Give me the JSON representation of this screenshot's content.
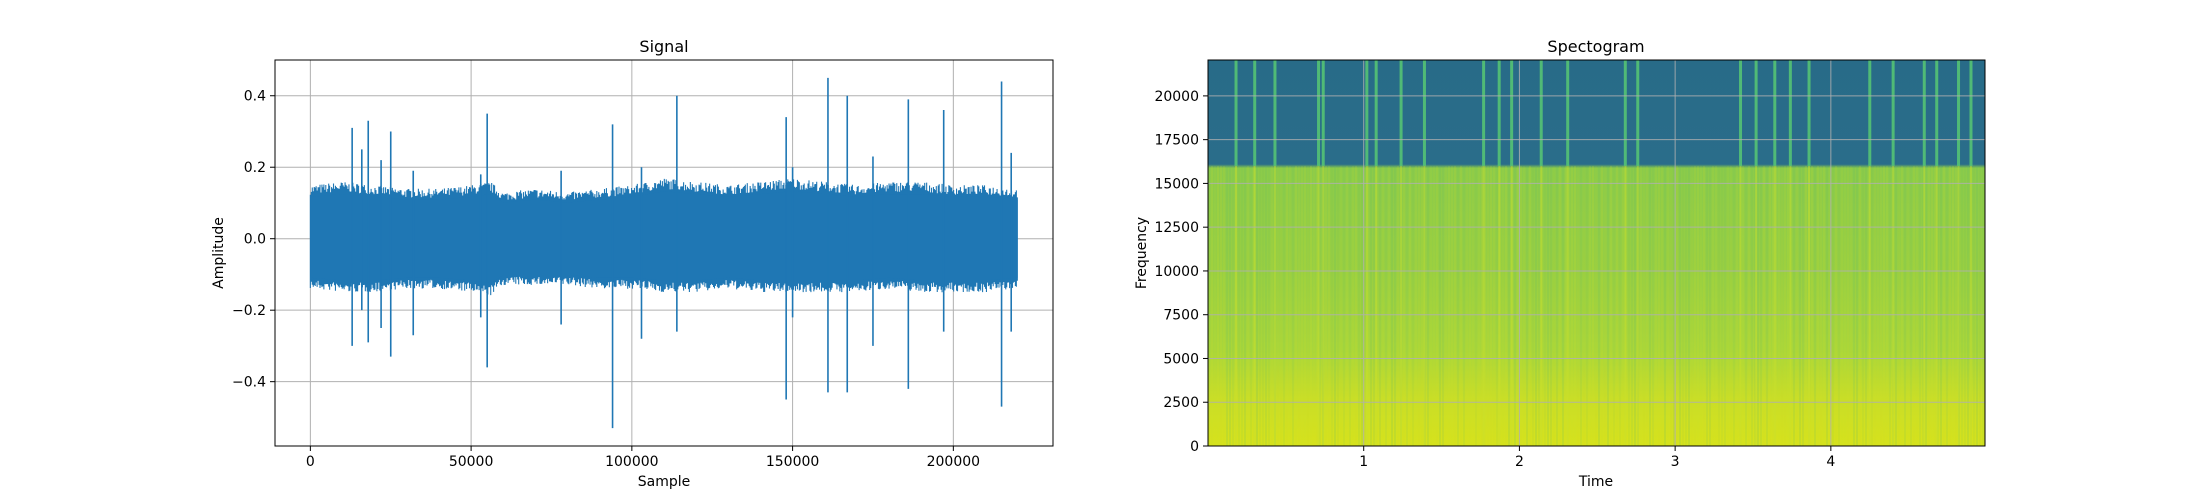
{
  "colors": {
    "line": "#1f77b4",
    "grid": "#b0b0b0",
    "axes": "#000000",
    "spec_bg_high": "#2a6d8a",
    "spec_body": "#9ccc3a",
    "spec_body_alt": "#7fc24a",
    "spec_low": "#d2e11f",
    "spec_strip": "#57c873"
  },
  "chart_data": [
    {
      "type": "line",
      "title": "Signal",
      "xlabel": "Sample",
      "ylabel": "Amplitude",
      "xlim": [
        -11000,
        231000
      ],
      "ylim": [
        -0.58,
        0.5
      ],
      "xticks": [
        0,
        50000,
        100000,
        150000,
        200000
      ],
      "xtick_labels": [
        "0",
        "50000",
        "100000",
        "150000",
        "200000"
      ],
      "yticks": [
        -0.4,
        -0.2,
        0.0,
        0.2,
        0.4
      ],
      "ytick_labels": [
        "−0.4",
        "−0.2",
        "0.0",
        "0.2",
        "0.4"
      ],
      "grid": true,
      "series": [
        {
          "envelope": {
            "x": [
              0,
              10000,
              20000,
              30000,
              40000,
              50000,
              56000,
              60000,
              70000,
              80000,
              90000,
              100000,
              110000,
              120000,
              130000,
              140000,
              150000,
              160000,
              170000,
              180000,
              190000,
              200000,
              210000,
              220000
            ],
            "upper": [
              0.15,
              0.16,
              0.15,
              0.14,
              0.14,
              0.15,
              0.16,
              0.13,
              0.14,
              0.13,
              0.14,
              0.15,
              0.17,
              0.16,
              0.15,
              0.16,
              0.17,
              0.16,
              0.15,
              0.16,
              0.16,
              0.15,
              0.15,
              0.14
            ],
            "lower": [
              -0.14,
              -0.15,
              -0.15,
              -0.14,
              -0.14,
              -0.15,
              -0.16,
              -0.13,
              -0.13,
              -0.13,
              -0.14,
              -0.14,
              -0.15,
              -0.15,
              -0.14,
              -0.15,
              -0.15,
              -0.15,
              -0.15,
              -0.14,
              -0.15,
              -0.15,
              -0.15,
              -0.14
            ]
          },
          "spikes": [
            {
              "x": 13000,
              "min": -0.3,
              "max": 0.31
            },
            {
              "x": 16000,
              "min": -0.2,
              "max": 0.25
            },
            {
              "x": 18000,
              "min": -0.29,
              "max": 0.33
            },
            {
              "x": 22000,
              "min": -0.25,
              "max": 0.22
            },
            {
              "x": 25000,
              "min": -0.33,
              "max": 0.3
            },
            {
              "x": 32000,
              "min": -0.27,
              "max": 0.19
            },
            {
              "x": 53000,
              "min": -0.22,
              "max": 0.18
            },
            {
              "x": 55000,
              "min": -0.36,
              "max": 0.35
            },
            {
              "x": 78000,
              "min": -0.24,
              "max": 0.19
            },
            {
              "x": 94000,
              "min": -0.53,
              "max": 0.32
            },
            {
              "x": 103000,
              "min": -0.28,
              "max": 0.2
            },
            {
              "x": 114000,
              "min": -0.26,
              "max": 0.4
            },
            {
              "x": 148000,
              "min": -0.45,
              "max": 0.34
            },
            {
              "x": 150000,
              "min": -0.22,
              "max": 0.2
            },
            {
              "x": 161000,
              "min": -0.43,
              "max": 0.45
            },
            {
              "x": 167000,
              "min": -0.43,
              "max": 0.4
            },
            {
              "x": 175000,
              "min": -0.3,
              "max": 0.23
            },
            {
              "x": 186000,
              "min": -0.42,
              "max": 0.39
            },
            {
              "x": 197000,
              "min": -0.26,
              "max": 0.36
            },
            {
              "x": 215000,
              "min": -0.47,
              "max": 0.44
            },
            {
              "x": 218000,
              "min": -0.26,
              "max": 0.24
            }
          ]
        }
      ]
    },
    {
      "type": "heatmap",
      "title": "Spectogram",
      "xlabel": "Time",
      "ylabel": "Frequency",
      "xlim": [
        0,
        4.99
      ],
      "ylim": [
        0,
        22050
      ],
      "xticks": [
        1,
        2,
        3,
        4
      ],
      "xtick_labels": [
        "1",
        "2",
        "3",
        "4"
      ],
      "yticks": [
        0,
        2500,
        5000,
        7500,
        10000,
        12500,
        15000,
        17500,
        20000
      ],
      "ytick_labels": [
        "0",
        "2500",
        "5000",
        "7500",
        "10000",
        "12500",
        "15000",
        "17500",
        "20000"
      ],
      "grid": true,
      "cutoff_frequency": 16000,
      "bands": [
        {
          "from": 0,
          "to": 3000,
          "level": "high"
        },
        {
          "from": 3000,
          "to": 9000,
          "level": "medium-high"
        },
        {
          "from": 9000,
          "to": 16000,
          "level": "medium"
        },
        {
          "from": 16000,
          "to": 22050,
          "level": "low"
        }
      ],
      "transients": [
        0.18,
        0.3,
        0.43,
        0.71,
        0.74,
        1.02,
        1.08,
        1.24,
        1.39,
        1.77,
        1.87,
        1.95,
        2.14,
        2.31,
        2.68,
        2.76,
        3.42,
        3.52,
        3.64,
        3.74,
        3.86,
        4.25,
        4.4,
        4.6,
        4.68,
        4.82,
        4.9
      ]
    }
  ]
}
